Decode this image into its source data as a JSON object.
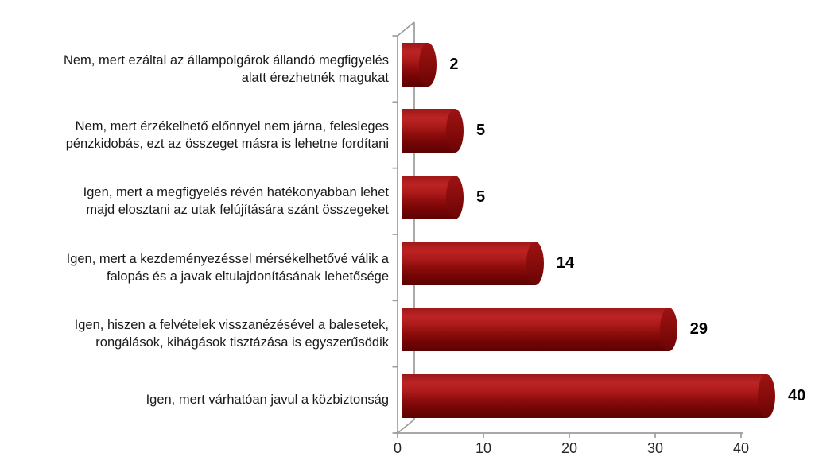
{
  "chart_data": {
    "type": "bar",
    "orientation": "horizontal",
    "style": "3d-cylinder",
    "title": "",
    "xlabel": "",
    "ylabel": "",
    "xlim": [
      0,
      40
    ],
    "x_ticks": [
      0,
      10,
      20,
      30,
      40
    ],
    "x_tick_labels": [
      "0",
      "10",
      "20",
      "30",
      "40"
    ],
    "grid": "off",
    "legend": "none",
    "categories": [
      "Nem, mert ezáltal az állampolgárok állandó megfigyelés\nalatt érezhetnék magukat",
      "Nem, mert érzékelhető előnnyel nem járna, felesleges\npénzkidobás, ezt az összeget másra is lehetne fordítani",
      "Igen, mert a megfigyelés révén hatékonyabban lehet\nmajd elosztani az utak felújítására szánt összegeket",
      "Igen, mert a kezdeményezéssel mérsékelhetővé válik a\nfalopás és a javak eltulajdonításának lehetősége",
      "Igen, hiszen a felvételek visszanézésével a balesetek,\nrongálások, kihágások tisztázása is egyszerűsödik",
      "Igen, mert várhatóan javul a közbiztonság"
    ],
    "values": [
      2,
      5,
      5,
      14,
      29,
      40
    ],
    "value_labels": [
      "2",
      "5",
      "5",
      "14",
      "29",
      "40"
    ],
    "colors": {
      "bar_body": "#a01414",
      "bar_highlight": "#bc2424",
      "bar_shadow": "#5c0202",
      "bar_cap": "#8a0c0c",
      "axis_line": "#9c9c9c",
      "label_text": "#1a1a1a",
      "value_text": "#000000",
      "background": "#ffffff"
    }
  }
}
